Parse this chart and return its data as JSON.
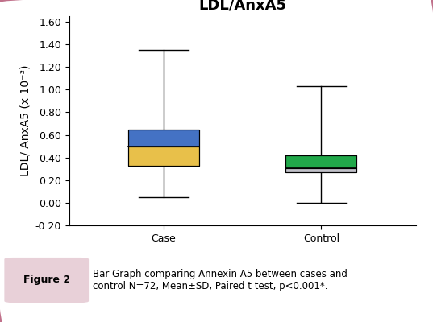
{
  "title": "LDL/AnxA5",
  "ylabel": "LDL/ AnxA5 (x 10⁻³)",
  "categories": [
    "Case",
    "Control"
  ],
  "ylim": [
    -0.2,
    1.65
  ],
  "yticks": [
    -0.2,
    0.0,
    0.2,
    0.4,
    0.6,
    0.8,
    1.0,
    1.2,
    1.4,
    1.6
  ],
  "case": {
    "whisker_low": 0.05,
    "q1": 0.33,
    "median": 0.5,
    "q3": 0.65,
    "whisker_high": 1.35,
    "lower_color": "#E8C04A",
    "upper_color": "#4472C4"
  },
  "control": {
    "whisker_low": 0.0,
    "q1": 0.27,
    "median": 0.305,
    "q3": 0.42,
    "whisker_high": 1.03,
    "lower_color": "#C0C0C8",
    "upper_color": "#21A84A"
  },
  "box_width": 0.45,
  "background_color": "#FFFFFF",
  "border_color": "#C0708A",
  "caption_label": "Figure 2",
  "caption_label_bg": "#E8D0D8",
  "caption_text": "Bar Graph comparing Annexin A5 between cases and\ncontrol N=72, Mean±SD, Paired t test, p<0.001*.",
  "title_fontsize": 13,
  "axis_fontsize": 10,
  "tick_fontsize": 9
}
